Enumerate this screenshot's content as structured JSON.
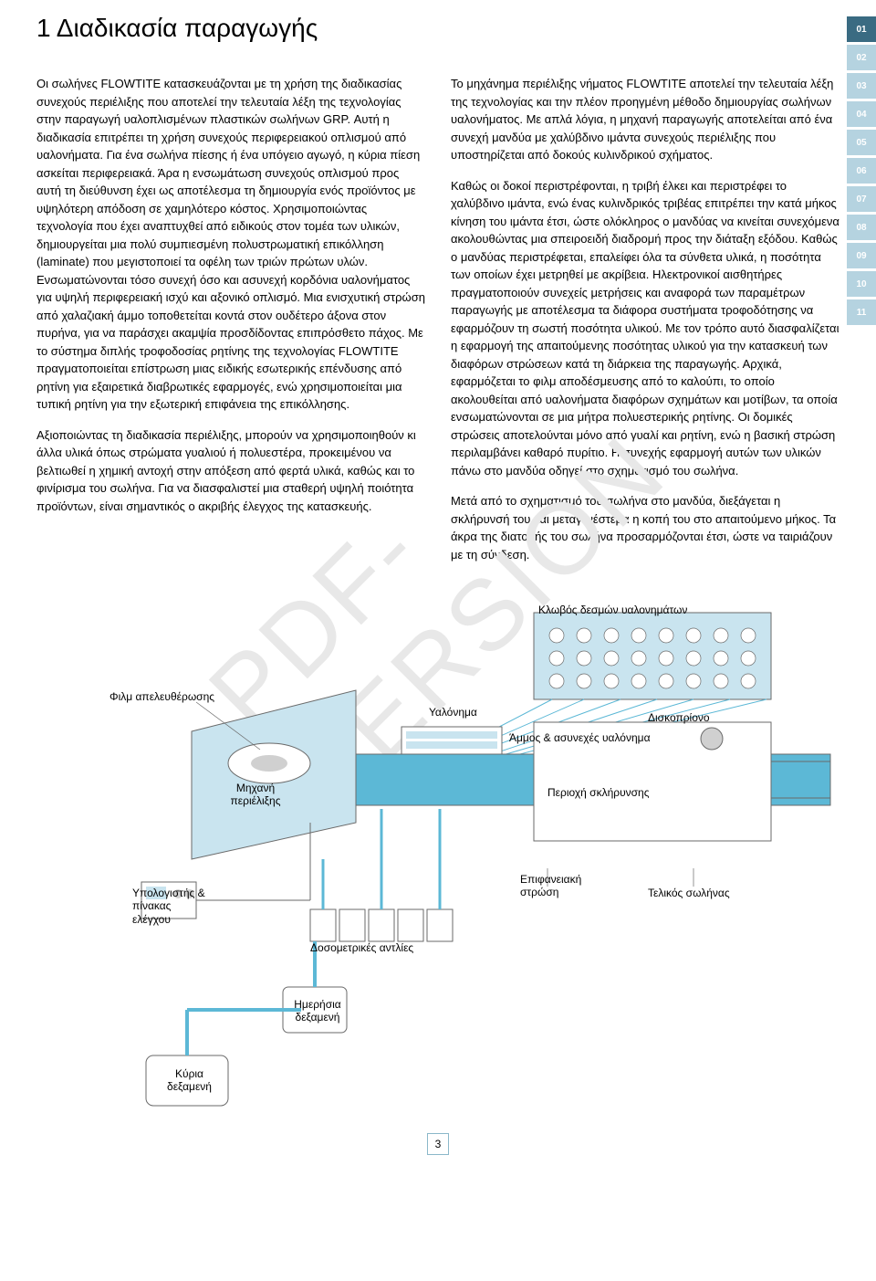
{
  "title": "1 Διαδικασία παραγωγής",
  "page_number": "3",
  "watermark": "PDF-VERSION",
  "colors": {
    "tab_active": "#3a6b82",
    "tab_inactive": "#b5d3e0",
    "diagram_cyan": "#5cb8d6",
    "diagram_light": "#c9e4ef",
    "diagram_grey": "#d0d0d0",
    "diagram_border": "#6a6a6a",
    "background": "#ffffff"
  },
  "tabs": [
    {
      "num": "01",
      "active": true
    },
    {
      "num": "02",
      "active": false
    },
    {
      "num": "03",
      "active": false
    },
    {
      "num": "04",
      "active": false
    },
    {
      "num": "05",
      "active": false
    },
    {
      "num": "06",
      "active": false
    },
    {
      "num": "07",
      "active": false
    },
    {
      "num": "08",
      "active": false
    },
    {
      "num": "09",
      "active": false
    },
    {
      "num": "10",
      "active": false
    },
    {
      "num": "11",
      "active": false
    }
  ],
  "left_column": [
    "Οι σωλήνες FLOWTITE κατασκευάζονται με τη χρήση της διαδικασίας συνεχούς περιέλιξης που αποτελεί την τελευταία λέξη της τεχνολογίας στην παραγωγή υαλοπλισμένων πλαστικών σωλήνων GRP. Αυτή η διαδικασία επιτρέπει τη χρήση συνεχούς περιφερειακού οπλισμού από υαλονήματα. Για ένα σωλήνα πίεσης ή ένα υπόγειο αγωγό, η κύρια πίεση ασκείται περιφερειακά. Άρα η ενσωμάτωση συνεχούς οπλισμού προς αυτή τη διεύθυνση έχει ως αποτέλεσμα τη δημιουργία ενός προϊόντος με υψηλότερη απόδοση σε χαμηλότερο κόστος. Χρησιμοποιώντας τεχνολογία που έχει αναπτυχθεί από ειδικούς στον τομέα των υλικών, δημιουργείται μια πολύ συμπιεσμένη πολυστρωματική επικόλληση (laminate) που μεγιστοποιεί τα οφέλη των τριών πρώτων υλών. Ενσωματώνονται τόσο συνεχή όσο και ασυνεχή κορδόνια υαλονήματος για υψηλή περιφερειακή ισχύ και αξονικό οπλισμό. Μια ενισχυτική στρώση από χαλαζιακή άμμο τοποθετείται κοντά στον ουδέτερο άξονα στον πυρήνα, για να παράσχει ακαμψία προσδίδοντας επιπρόσθετο πάχος. Με το σύστημα διπλής τροφοδοσίας ρητίνης της τεχνολογίας FLOWTITE πραγματοποιείται επίστρωση μιας ειδικής εσωτερικής επένδυσης από ρητίνη για εξαιρετικά διαβρωτικές εφαρμογές, ενώ χρησιμοποιείται μια τυπική ρητίνη για την εξωτερική επιφάνεια της επικόλλησης.",
    "Αξιοποιώντας τη διαδικασία περιέλιξης, μπορούν να χρησιμοποιηθούν κι άλλα υλικά όπως στρώματα γυαλιού ή πολυεστέρα, προκειμένου να βελτιωθεί η χημική αντοχή στην απόξεση από φερτά υλικά, καθώς και το φινίρισμα του σωλήνα. Για να διασφαλιστεί μια σταθερή υψηλή ποιότητα προϊόντων, είναι σημαντικός ο ακριβής έλεγχος της κατασκευής."
  ],
  "right_column": [
    "Το μηχάνημα περιέλιξης νήματος FLOWTITE αποτελεί την τελευταία λέξη της τεχνολογίας και την πλέον προηγμένη μέθοδο δημιουργίας σωλήνων υαλονήματος. Με απλά λόγια, η μηχανή παραγωγής αποτελείται από ένα συνεχή μανδύα με χαλύβδινο ιμάντα συνεχούς περιέλιξης που υποστηρίζεται από δοκούς κυλινδρικού σχήματος.",
    "Καθώς οι δοκοί περιστρέφονται, η τριβή έλκει και περιστρέφει το χαλύβδινο ιμάντα, ενώ ένας κυλινδρικός τριβέας επιτρέπει την κατά μήκος κίνηση του ιμάντα έτσι, ώστε ολόκληρος ο μανδύας να κινείται συνεχόμενα ακολουθώντας μια σπειροειδή διαδρομή προς την διάταξη εξόδου. Καθώς ο μανδύας περιστρέφεται, επαλείφει όλα τα σύνθετα υλικά, η ποσότητα των οποίων έχει μετρηθεί με ακρίβεια. Ηλεκτρονικοί αισθητήρες πραγματοποιούν συνεχείς μετρήσεις και αναφορά των παραμέτρων παραγωγής με αποτέλεσμα τα διάφορα συστήματα τροφοδότησης να εφαρμόζουν τη σωστή ποσότητα υλικού. Με τον τρόπο αυτό διασφαλίζεται η εφαρμογή της απαιτούμενης ποσότητας υλικού για την κατασκευή των διαφόρων στρώσεων κατά τη διάρκεια της παραγωγής. Αρχικά, εφαρμόζεται το φιλμ αποδέσμευσης από το καλούπι, το οποίο ακολουθείται από υαλονήματα διαφόρων σχημάτων και μοτίβων, τα οποία ενσωματώνονται σε μια μήτρα πολυεστερικής ρητίνης. Οι δομικές στρώσεις αποτελούνται μόνο από γυαλί και ρητίνη, ενώ η βασική στρώση περιλαμβάνει καθαρό πυρίτιο. Η συνεχής εφαρμογή αυτών των υλικών πάνω στο μανδύα οδηγεί στο σχηματισμό του σωλήνα.",
    "Μετά από το σχηματισμό του σωλήνα στο μανδύα, διεξάγεται η σκλήρυνσή του και μεταγενέστερα η κοπή του στο απαιτούμενο μήκος. Τα άκρα της διατομής του σωλήνα προσαρμόζονται έτσι, ώστε να ταιριάζουν με τη σύνδεση."
  ],
  "diagram": {
    "labels": {
      "film": "Φιλμ απελευθέρωσης",
      "cage": "Κλωβός δεσμών υαλονημάτων",
      "glass": "Υαλόνημα",
      "disc": "Δισκοπρίονο",
      "sand": "Άμμος & ασυνεχές υαλόνημα",
      "winder": "Μηχανή περιέλιξης",
      "curing": "Περιοχή σκλήρυνσης",
      "computer": "Υπολογιστής & πίνακας ελέγχου",
      "pumps": "Δοσομετρικές αντλίες",
      "surface": "Επιφανειακή στρώση",
      "pipe": "Τελικός σωλήνας",
      "day_tank": "Ημερήσια δεξαμενή",
      "main_tank": "Κύρια δεξαμενή"
    }
  }
}
